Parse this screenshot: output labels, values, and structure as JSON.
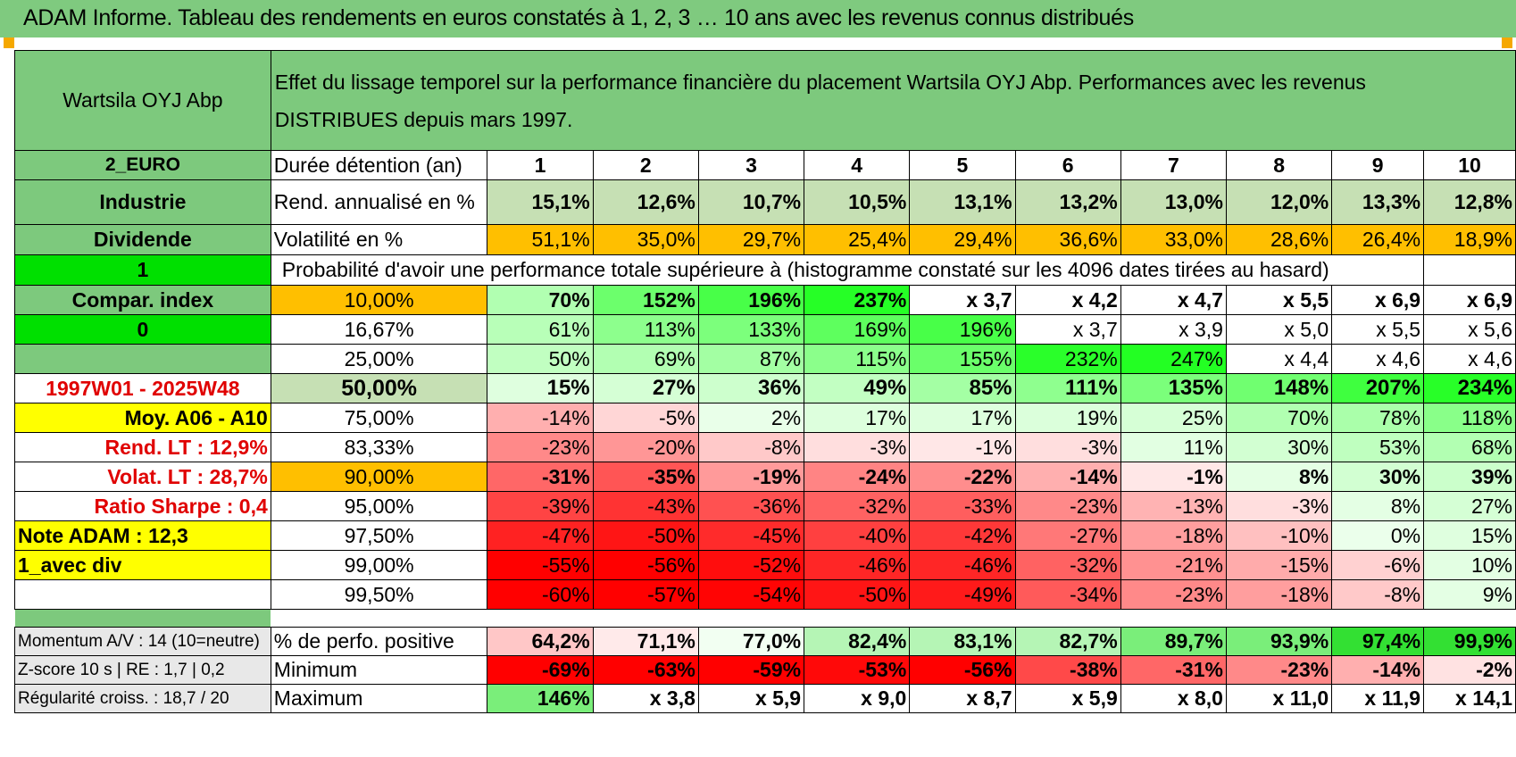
{
  "title": "ADAM Informe. Tableau des rendements en euros constatés à 1, 2, 3 … 10 ans avec les revenus connus distribués",
  "header": {
    "company": "Wartsila OYJ Abp",
    "description_line1": "Effet du lissage temporel sur la performance financière du placement Wartsila OYJ Abp. Performances avec les revenus",
    "description_line2": "DISTRIBUES depuis mars 1997."
  },
  "left_labels": {
    "currency": "2_EURO",
    "sector": "Industrie",
    "type": "Dividende",
    "flag1": "1",
    "compar": "Compar. index",
    "flag0": "0",
    "period": "1997W01 - 2025W48",
    "moy": "Moy. A06 - A10",
    "rend_lt": "Rend. LT :    12,9%",
    "volat_lt": "Volat. LT :    28,7%",
    "sharpe": "Ratio Sharpe :     0,4",
    "note": "Note ADAM : 12,3",
    "avec_div": "1_avec div",
    "momentum": "Momentum A/V : 14 (10=neutre)",
    "zscore": "Z-score 10 s | RE : 1,7 | 0,2",
    "regularite": "Régularité croiss. : 18,7 / 20"
  },
  "rows": {
    "duree_label": "Durée détention (an)",
    "years": [
      "1",
      "2",
      "3",
      "4",
      "5",
      "6",
      "7",
      "8",
      "9",
      "10"
    ],
    "rend_label": "Rend. annualisé en %",
    "rend": [
      "15,1%",
      "12,6%",
      "10,7%",
      "10,5%",
      "13,1%",
      "13,2%",
      "13,0%",
      "12,0%",
      "13,3%",
      "12,8%"
    ],
    "vol_label": "Volatilité en %",
    "vol": [
      "51,1%",
      "35,0%",
      "29,7%",
      "25,4%",
      "29,4%",
      "36,6%",
      "33,0%",
      "28,6%",
      "26,4%",
      "18,9%"
    ],
    "proba_text": "Probabilité d'avoir une performance totale supérieure à (histogramme constaté sur les 4096 dates tirées au hasard)"
  },
  "probabilities": [
    {
      "p": "10,00%",
      "v": [
        "70%",
        "152%",
        "196%",
        "237%",
        "x 3,7",
        "x 4,2",
        "x 4,7",
        "x 5,5",
        "x 6,9",
        "x 6,9"
      ]
    },
    {
      "p": "16,67%",
      "v": [
        "61%",
        "113%",
        "133%",
        "169%",
        "196%",
        "x 3,7",
        "x 3,9",
        "x 5,0",
        "x 5,5",
        "x 5,6"
      ]
    },
    {
      "p": "25,00%",
      "v": [
        "50%",
        "69%",
        "87%",
        "115%",
        "155%",
        "232%",
        "247%",
        "x 4,4",
        "x 4,6",
        "x 4,6"
      ]
    },
    {
      "p": "50,00%",
      "v": [
        "15%",
        "27%",
        "36%",
        "49%",
        "85%",
        "111%",
        "135%",
        "148%",
        "207%",
        "234%"
      ]
    },
    {
      "p": "75,00%",
      "v": [
        "-14%",
        "-5%",
        "2%",
        "17%",
        "17%",
        "19%",
        "25%",
        "70%",
        "78%",
        "118%"
      ]
    },
    {
      "p": "83,33%",
      "v": [
        "-23%",
        "-20%",
        "-8%",
        "-3%",
        "-1%",
        "-3%",
        "11%",
        "30%",
        "53%",
        "68%"
      ]
    },
    {
      "p": "90,00%",
      "v": [
        "-31%",
        "-35%",
        "-19%",
        "-24%",
        "-22%",
        "-14%",
        "-1%",
        "8%",
        "30%",
        "39%"
      ]
    },
    {
      "p": "95,00%",
      "v": [
        "-39%",
        "-43%",
        "-36%",
        "-32%",
        "-33%",
        "-23%",
        "-13%",
        "-3%",
        "8%",
        "27%"
      ]
    },
    {
      "p": "97,50%",
      "v": [
        "-47%",
        "-50%",
        "-45%",
        "-40%",
        "-42%",
        "-27%",
        "-18%",
        "-10%",
        "0%",
        "15%"
      ]
    },
    {
      "p": "99,00%",
      "v": [
        "-55%",
        "-56%",
        "-52%",
        "-46%",
        "-46%",
        "-32%",
        "-21%",
        "-15%",
        "-6%",
        "10%"
      ]
    },
    {
      "p": "99,50%",
      "v": [
        "-60%",
        "-57%",
        "-54%",
        "-50%",
        "-49%",
        "-34%",
        "-23%",
        "-18%",
        "-8%",
        "9%"
      ]
    }
  ],
  "summary": [
    {
      "label": "% de perfo. positive",
      "v": [
        "64,2%",
        "71,1%",
        "77,0%",
        "82,4%",
        "83,1%",
        "82,7%",
        "89,7%",
        "93,9%",
        "97,4%",
        "99,9%"
      ]
    },
    {
      "label": "Minimum",
      "v": [
        "-69%",
        "-63%",
        "-59%",
        "-53%",
        "-56%",
        "-38%",
        "-31%",
        "-23%",
        "-14%",
        "-2%"
      ]
    },
    {
      "label": "Maximum",
      "v": [
        "146%",
        "x 3,8",
        "x 5,9",
        "x 9,0",
        "x 8,7",
        "x 5,9",
        "x 8,0",
        "x 11,0",
        "x 11,9",
        "x 14,1"
      ]
    }
  ],
  "colors": {
    "header_green": "#7dc97d",
    "light_green": "#c6e0b4",
    "bright_green": "#00e000",
    "orange": "#ffbf00",
    "yellow": "#ffff00",
    "label_red": "#e00000"
  }
}
